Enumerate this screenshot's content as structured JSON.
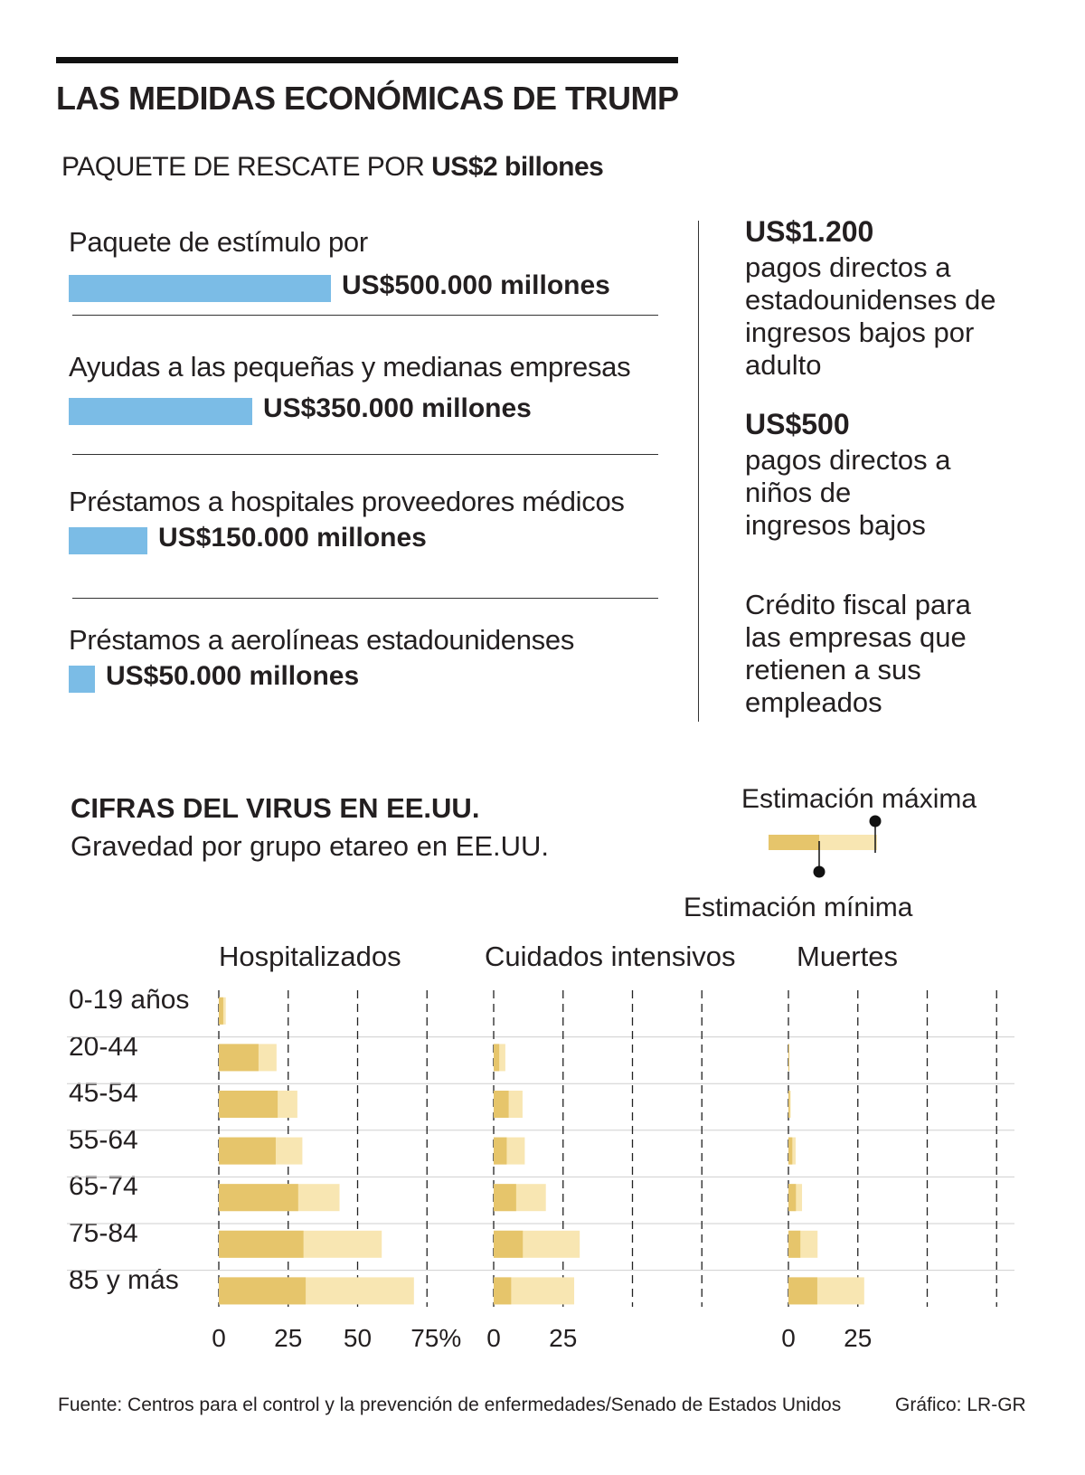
{
  "header": {
    "title": "LAS MEDIDAS ECONÓMICAS DE TRUMP",
    "package_prefix": "PAQUETE DE RESCATE POR ",
    "package_amount": "US$2 billones"
  },
  "stimulus": [
    {
      "label": "Paquete de estímulo por",
      "value_text": "US$500.000 millones",
      "value": 500000
    },
    {
      "label": "Ayudas a las pequeñas y medianas empresas",
      "value_text": "US$350.000 millones",
      "value": 350000
    },
    {
      "label": "Préstamos a hospitales proveedores médicos",
      "value_text": "US$150.000 millones",
      "value": 150000
    },
    {
      "label": "Préstamos a aerolíneas estadounidenses",
      "value_text": "US$50.000 millones",
      "value": 50000
    }
  ],
  "right_panel": {
    "item1_amount": "US$1.200",
    "item1_text": "pagos directos a estadounidenses de ingresos bajos por adulto",
    "item2_amount": "US$500",
    "item2_text": "pagos directos a niños de ingresos bajos",
    "item3_text": "Crédito fiscal para las empresas que retienen a sus empleados"
  },
  "virus": {
    "title": "CIFRAS DEL VIRUS EN EE.UU.",
    "subtitle": "Gravedad por grupo etareo en EE.UU.",
    "legend_max": "Estimación máxima",
    "legend_min": "Estimación mínima"
  },
  "colors": {
    "blue_bar": "#7bbce6",
    "min_bar": "#e6c56b",
    "max_bar": "#f8e6b2"
  },
  "chart_data": {
    "type": "bar",
    "title": "Gravedad por grupo etareo en EE.UU.",
    "categories": [
      "0-19 años",
      "20-44",
      "45-54",
      "55-64",
      "65-74",
      "75-84",
      "85 y más"
    ],
    "unit": "%",
    "xlim": [
      0,
      75
    ],
    "panels": [
      {
        "name": "Hospitalizados",
        "ticks": [
          "0",
          "25",
          "50",
          "75%"
        ],
        "min": [
          1.6,
          14.3,
          21.2,
          20.5,
          28.6,
          30.5,
          31.3
        ],
        "max": [
          2.5,
          20.8,
          28.3,
          30.1,
          43.5,
          58.7,
          70.3
        ]
      },
      {
        "name": "Cuidados intensivos",
        "ticks": [
          "0",
          "25"
        ],
        "min": [
          0,
          2.0,
          5.4,
          4.7,
          8.1,
          10.5,
          6.3
        ],
        "max": [
          0,
          4.2,
          10.4,
          11.2,
          18.8,
          31.0,
          29.0
        ]
      },
      {
        "name": "Muertes",
        "ticks": [
          "0",
          "25"
        ],
        "min": [
          0,
          0.1,
          0.5,
          1.4,
          2.7,
          4.3,
          10.4
        ],
        "max": [
          0,
          0.2,
          0.8,
          2.6,
          4.9,
          10.5,
          27.3
        ]
      }
    ]
  },
  "footer": {
    "source": "Fuente: Centros para el control y la prevención de enfermedades/Senado de Estados Unidos",
    "credit": "Gráfico: LR-GR"
  }
}
